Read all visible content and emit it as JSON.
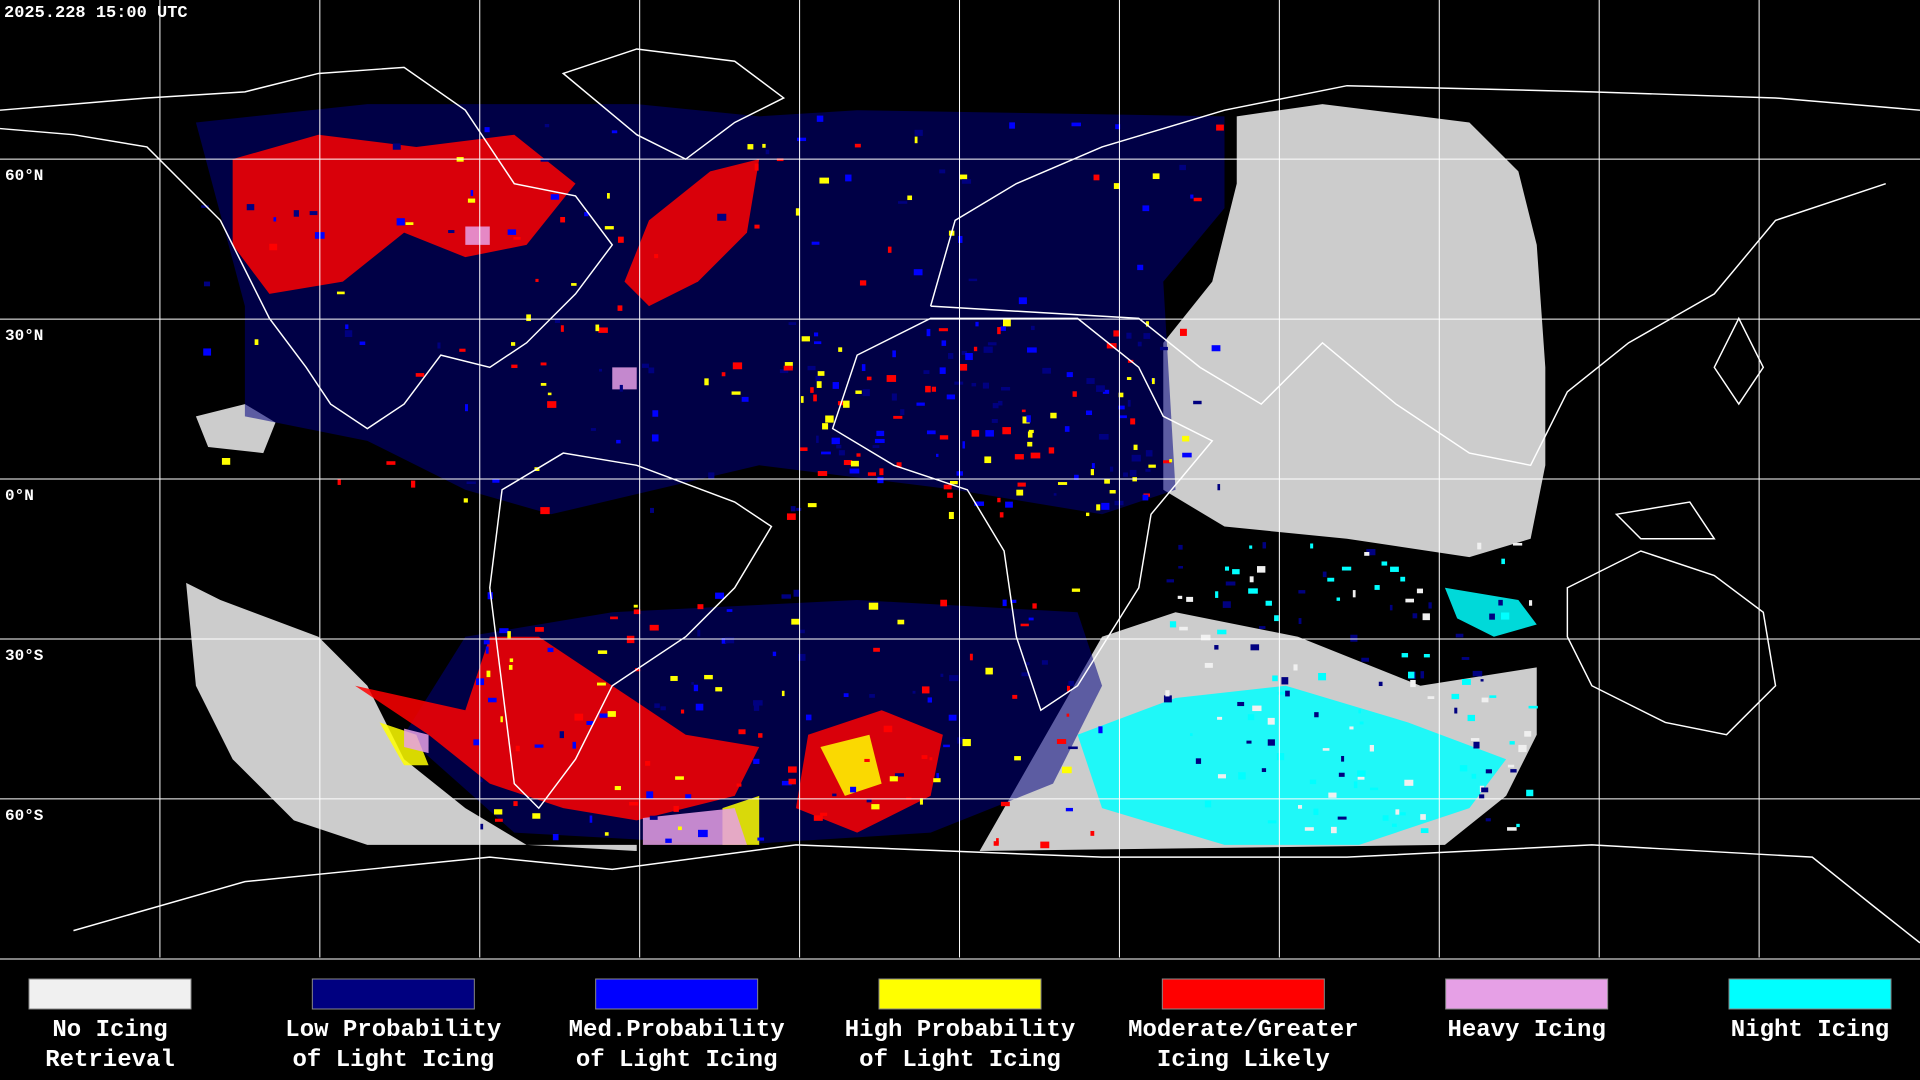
{
  "header": {
    "timestamp": "2025.228 15:00 UTC"
  },
  "map": {
    "latitude_labels": [
      "60°N",
      "30°N",
      "0°N",
      "30°S",
      "60°S"
    ]
  },
  "legend": [
    {
      "label": [
        "No Icing",
        "Retrieval"
      ],
      "color": "#f0f0f0"
    },
    {
      "label": [
        "Low Probability",
        "of Light Icing"
      ],
      "color": "#000080"
    },
    {
      "label": [
        "Med.Probability",
        "of Light Icing"
      ],
      "color": "#0000ff"
    },
    {
      "label": [
        "High Probability",
        "of Light Icing"
      ],
      "color": "#ffff00"
    },
    {
      "label": [
        "Moderate/Greater",
        "Icing Likely"
      ],
      "color": "#ff0000"
    },
    {
      "label": [
        "Heavy Icing"
      ],
      "color": "#e6a0e6"
    },
    {
      "label": [
        "Night Icing"
      ],
      "color": "#00ffff"
    }
  ]
}
